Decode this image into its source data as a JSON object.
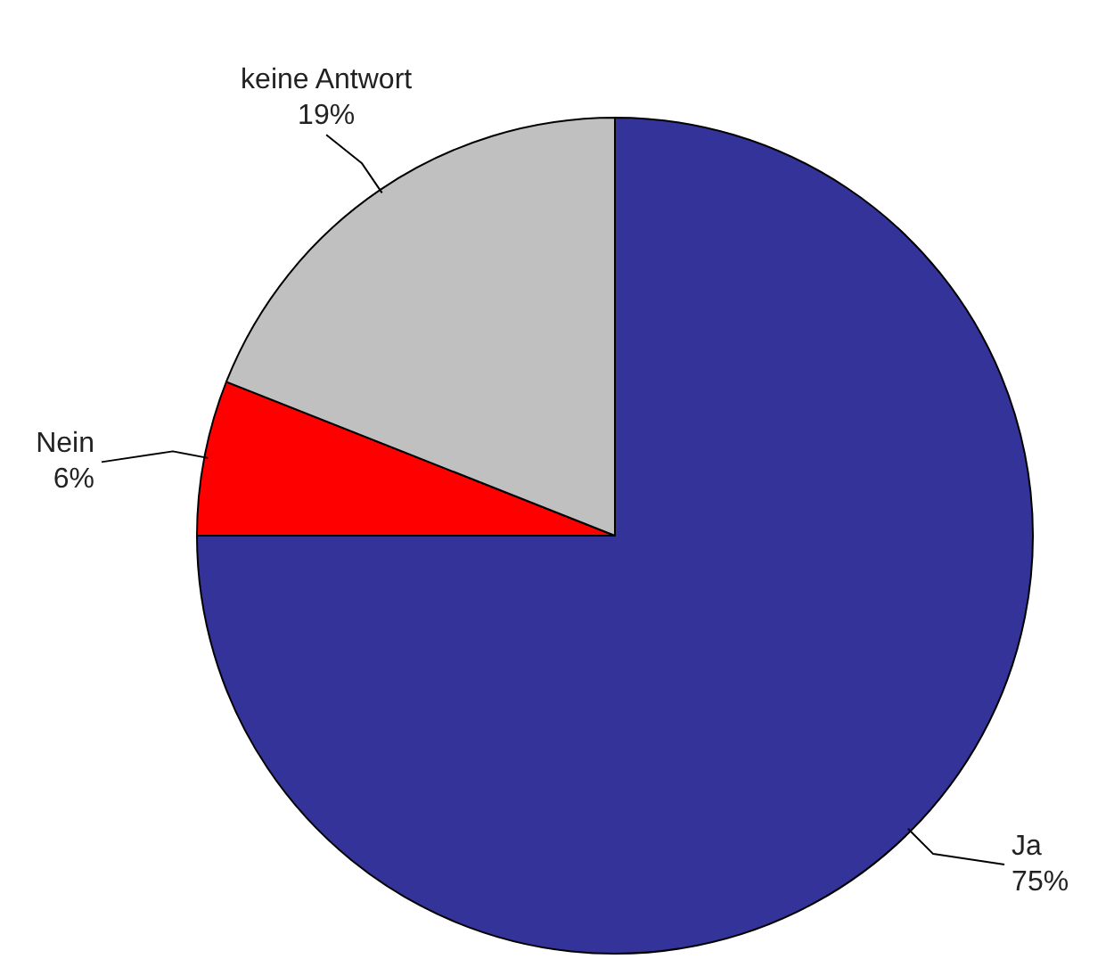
{
  "chart_data": {
    "type": "pie",
    "categories": [
      "Ja",
      "Nein",
      "keine Antwort"
    ],
    "values": [
      75,
      6,
      19
    ],
    "value_labels": [
      "75%",
      "6%",
      "19%"
    ],
    "colors": [
      "#333399",
      "#ff0000",
      "#c0c0c0"
    ],
    "legend": false
  }
}
